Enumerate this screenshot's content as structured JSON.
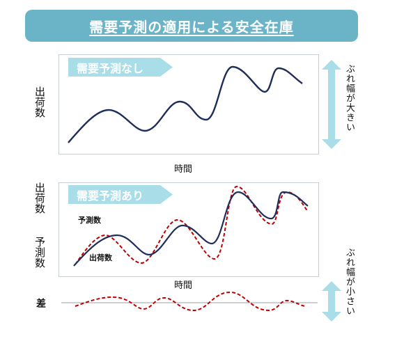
{
  "title": "需要予測の適用による安全在庫",
  "top_panel": {
    "ribbon": "需要予測なし",
    "ylabel": "出荷数",
    "xlabel": "時間",
    "side_note": "ぶれ幅が大きい"
  },
  "bottom_panel": {
    "ribbon": "需要予測あり",
    "ylabel_1": "出荷数",
    "ylabel_2": "予測数",
    "xlabel": "時間",
    "forecast_label": "予測数",
    "shipments_label": "出荷数"
  },
  "diff": {
    "label": "差",
    "side_note": "ぶれ幅が小さい"
  },
  "colors": {
    "title_bg": "#6bb4c8",
    "ribbon_bg": "#a9dde8",
    "actual_line": "#1f2d5a",
    "forecast_line": "#c00000",
    "arrow": "#a9dde8"
  }
}
